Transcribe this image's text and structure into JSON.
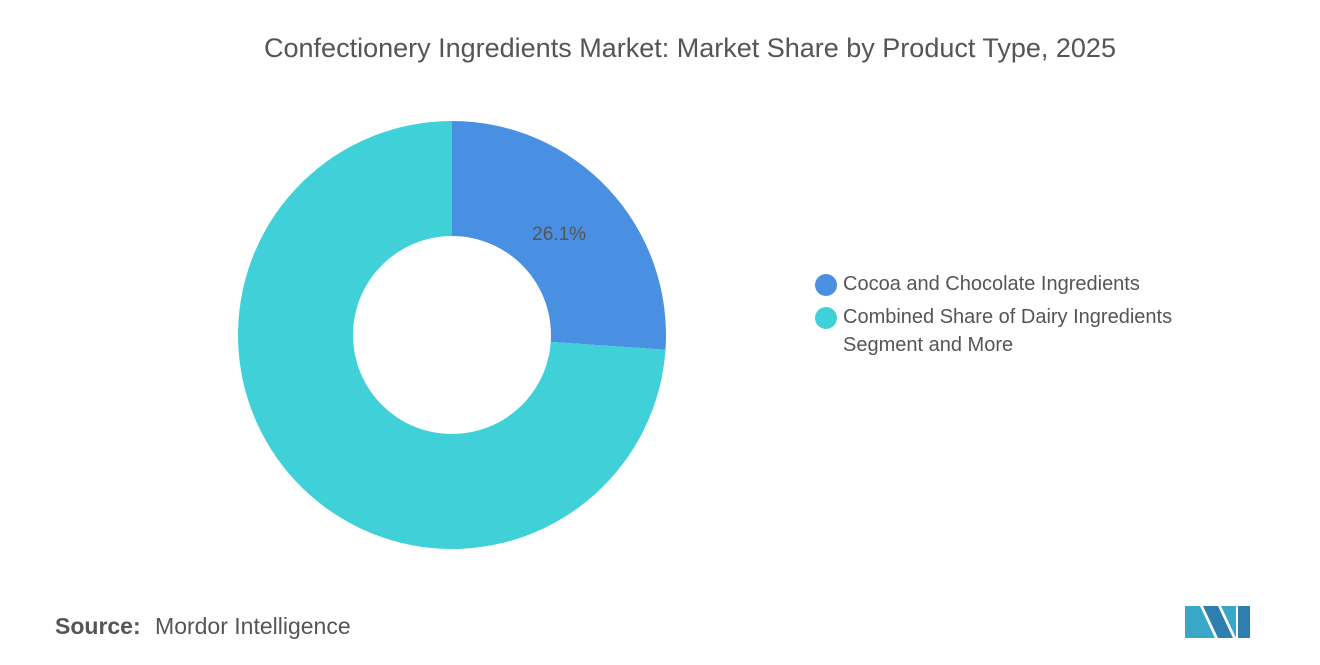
{
  "chart_data": {
    "type": "donut",
    "title": "Confectionery Ingredients Market: Market Share by Product Type, 2025",
    "categories": [
      "Cocoa and Chocolate Ingredients",
      "Combined Share of Dairy Ingredients Segment and More"
    ],
    "values": [
      26.1,
      73.9
    ],
    "value_labels": [
      "26.1%",
      null
    ],
    "colors": [
      "#4a90e2",
      "#40d0d8"
    ],
    "legend": "right"
  },
  "source": {
    "label": "Source:",
    "text": "Mordor Intelligence"
  }
}
